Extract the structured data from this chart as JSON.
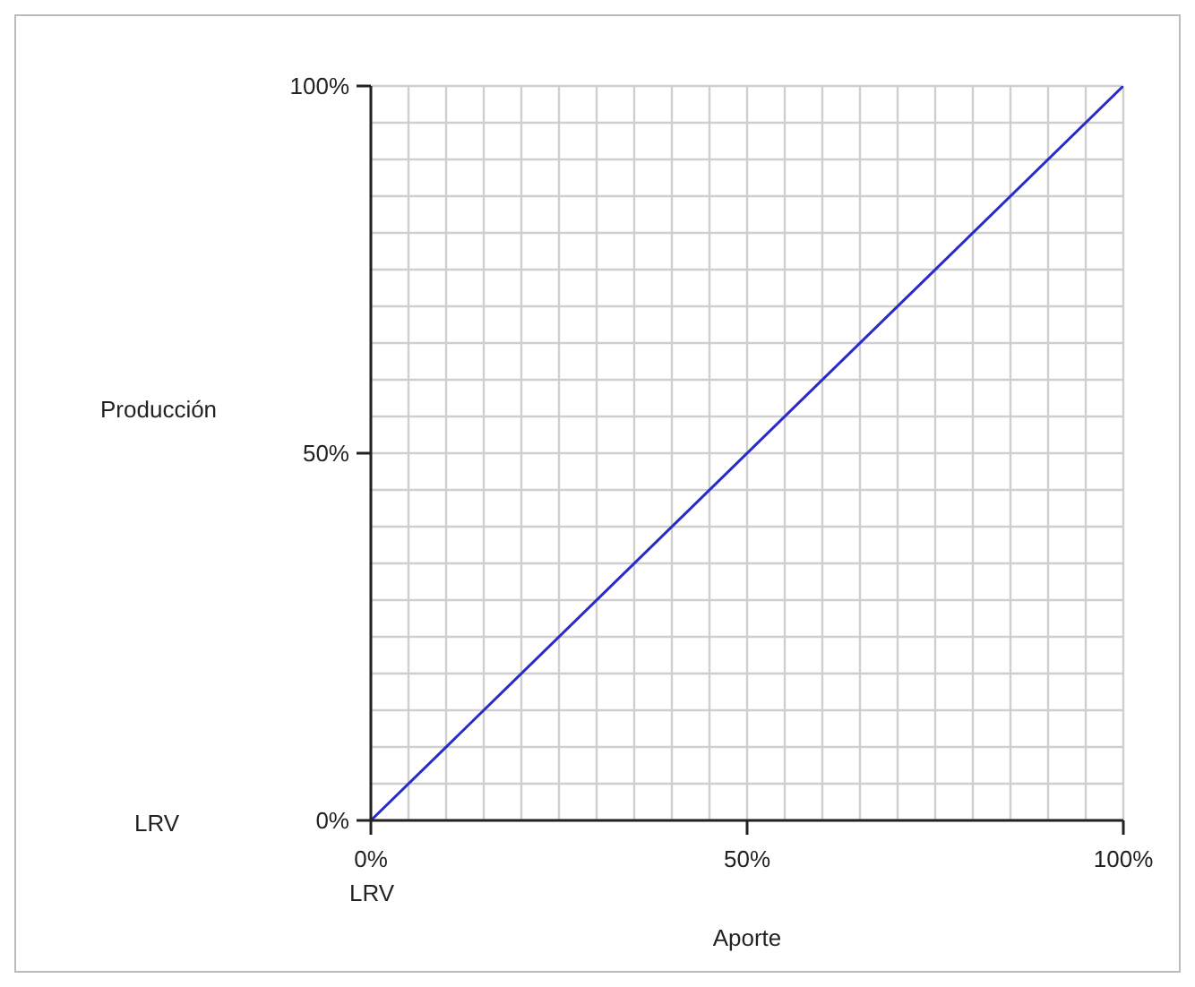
{
  "chart_data": {
    "type": "line",
    "xlabel": "Aporte",
    "ylabel": "Producción",
    "x": [
      0,
      100
    ],
    "series": [
      {
        "color": "#2a2ac8",
        "values": [
          0,
          100
        ]
      }
    ],
    "xlim": [
      0,
      100
    ],
    "ylim": [
      0,
      100
    ],
    "xticks": [
      {
        "value": 0,
        "label": "0%"
      },
      {
        "value": 5,
        "label": null
      },
      {
        "value": 10,
        "label": null
      },
      {
        "value": 15,
        "label": null
      },
      {
        "value": 20,
        "label": null
      },
      {
        "value": 25,
        "label": null
      },
      {
        "value": 30,
        "label": null
      },
      {
        "value": 35,
        "label": null
      },
      {
        "value": 40,
        "label": null
      },
      {
        "value": 45,
        "label": null
      },
      {
        "value": 50,
        "label": "50%"
      },
      {
        "value": 55,
        "label": null
      },
      {
        "value": 60,
        "label": null
      },
      {
        "value": 65,
        "label": null
      },
      {
        "value": 70,
        "label": null
      },
      {
        "value": 75,
        "label": null
      },
      {
        "value": 80,
        "label": null
      },
      {
        "value": 85,
        "label": null
      },
      {
        "value": 90,
        "label": null
      },
      {
        "value": 95,
        "label": null
      },
      {
        "value": 100,
        "label": "100%"
      }
    ],
    "yticks": [
      {
        "value": 0,
        "label": "0%"
      },
      {
        "value": 5,
        "label": null
      },
      {
        "value": 10,
        "label": null
      },
      {
        "value": 15,
        "label": null
      },
      {
        "value": 20,
        "label": null
      },
      {
        "value": 25,
        "label": null
      },
      {
        "value": 30,
        "label": null
      },
      {
        "value": 35,
        "label": null
      },
      {
        "value": 40,
        "label": null
      },
      {
        "value": 45,
        "label": null
      },
      {
        "value": 50,
        "label": "50%"
      },
      {
        "value": 55,
        "label": null
      },
      {
        "value": 60,
        "label": null
      },
      {
        "value": 65,
        "label": null
      },
      {
        "value": 70,
        "label": null
      },
      {
        "value": 75,
        "label": null
      },
      {
        "value": 80,
        "label": null
      },
      {
        "value": 85,
        "label": null
      },
      {
        "value": 90,
        "label": null
      },
      {
        "value": 95,
        "label": null
      },
      {
        "value": 100,
        "label": "100%"
      }
    ],
    "grid": true,
    "marker": "none",
    "line_style": "solid",
    "annotations": [
      "LRV",
      "LRV"
    ]
  }
}
